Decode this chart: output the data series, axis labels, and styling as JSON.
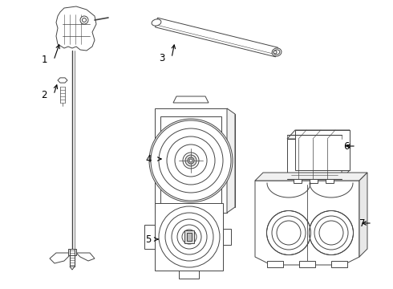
{
  "bg_color": "#ffffff",
  "line_color": "#444444",
  "label_color": "#000000",
  "label_fontsize": 8.5,
  "fig_width": 4.9,
  "fig_height": 3.6,
  "dpi": 100
}
